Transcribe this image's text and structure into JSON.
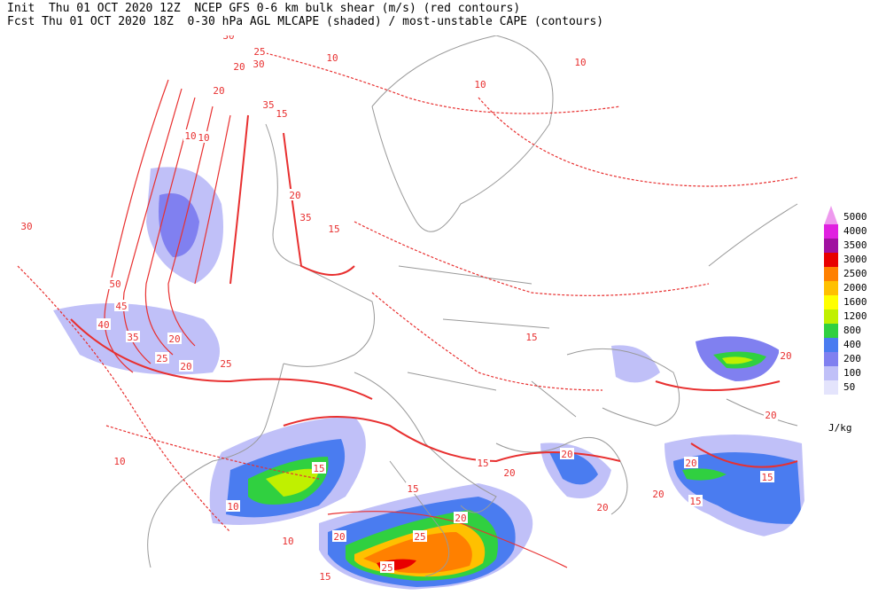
{
  "header": {
    "line1": "Init  Thu 01 OCT 2020 12Z  NCEP GFS 0-6 km bulk shear (m/s) (red contours)",
    "line2": "Fcst Thu 01 OCT 2020 18Z  0-30 hPa AGL MLCAPE (shaded) / most-unstable CAPE (contours)"
  },
  "legend": {
    "unit": "J/kg",
    "levels": [
      {
        "value": 5000,
        "color": "#ee99ee"
      },
      {
        "value": 4000,
        "color": "#e020e0"
      },
      {
        "value": 3500,
        "color": "#a010a0"
      },
      {
        "value": 3000,
        "color": "#e80000"
      },
      {
        "value": 2500,
        "color": "#ff8000"
      },
      {
        "value": 2000,
        "color": "#ffc000"
      },
      {
        "value": 1600,
        "color": "#ffff00"
      },
      {
        "value": 1200,
        "color": "#c0f000"
      },
      {
        "value": 800,
        "color": "#30d040"
      },
      {
        "value": 400,
        "color": "#4a7cf0"
      },
      {
        "value": 200,
        "color": "#8080f0"
      },
      {
        "value": 100,
        "color": "#c0c0f8"
      },
      {
        "value": 50,
        "color": "#e4e4fc"
      }
    ]
  },
  "contour_labels": [
    30,
    25,
    20,
    30,
    10,
    20,
    35,
    15,
    10,
    10,
    20,
    35,
    15,
    30,
    50,
    45,
    40,
    35,
    20,
    25,
    20,
    25,
    15,
    10,
    15,
    15,
    20,
    20,
    20,
    20,
    25,
    25,
    15,
    20,
    20,
    20,
    15,
    15,
    20,
    20,
    10,
    15,
    10,
    10,
    10
  ]
}
